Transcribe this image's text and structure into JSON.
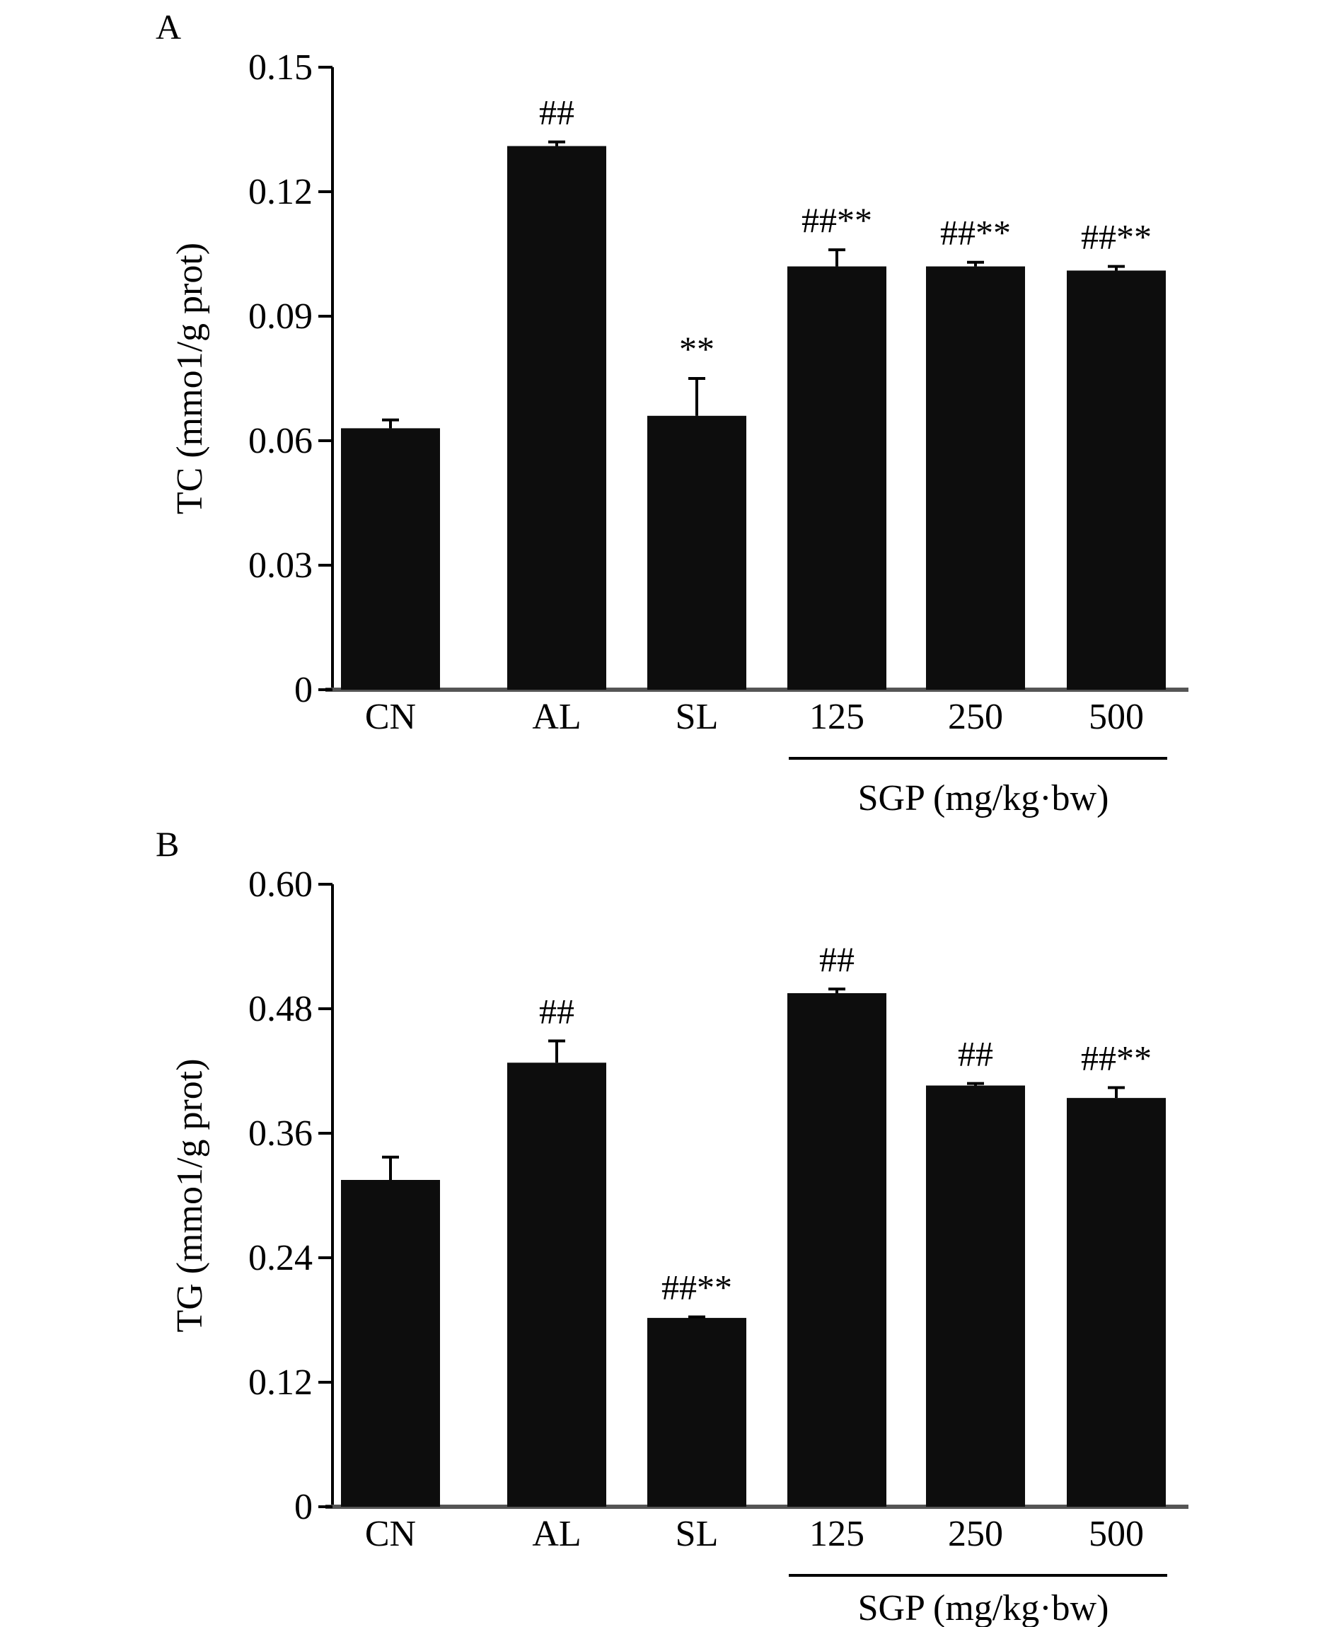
{
  "chart_data": [
    {
      "type": "bar",
      "panel_label": "A",
      "categories": [
        "CN",
        "AL",
        "SL",
        "125",
        "250",
        "500"
      ],
      "values": [
        0.063,
        0.131,
        0.066,
        0.102,
        0.102,
        0.101
      ],
      "errors": [
        0.002,
        0.001,
        0.009,
        0.004,
        0.001,
        0.001
      ],
      "annotations": [
        "",
        "##",
        "**",
        "##**",
        "##**",
        "##**"
      ],
      "ylabel": "TC (mmo1/g prot)",
      "yticks": [
        0,
        0.03,
        0.06,
        0.09,
        0.12,
        0.15
      ],
      "ytick_labels": [
        "0",
        "0.03",
        "0.06",
        "0.09",
        "0.12",
        "0.15"
      ],
      "ylim": [
        0,
        0.15
      ],
      "group_label": "SGP (mg/kg·bw)",
      "group_categories": [
        "125",
        "250",
        "500"
      ],
      "bar_color": "#0d0d0d"
    },
    {
      "type": "bar",
      "panel_label": "B",
      "categories": [
        "CN",
        "AL",
        "SL",
        "125",
        "250",
        "500"
      ],
      "values": [
        0.315,
        0.428,
        0.182,
        0.495,
        0.406,
        0.394
      ],
      "errors": [
        0.022,
        0.021,
        0.001,
        0.004,
        0.002,
        0.01
      ],
      "annotations": [
        "",
        "##",
        "##**",
        "##",
        "##",
        "##**"
      ],
      "ylabel": "TG (mmo1/g prot)",
      "yticks": [
        0,
        0.12,
        0.24,
        0.36,
        0.48,
        0.6
      ],
      "ytick_labels": [
        "0",
        "0.12",
        "0.24",
        "0.36",
        "0.48",
        "0.60"
      ],
      "ylim": [
        0,
        0.6
      ],
      "group_label": "SGP (mg/kg·bw)",
      "group_categories": [
        "125",
        "250",
        "500"
      ],
      "bar_color": "#0d0d0d"
    }
  ]
}
